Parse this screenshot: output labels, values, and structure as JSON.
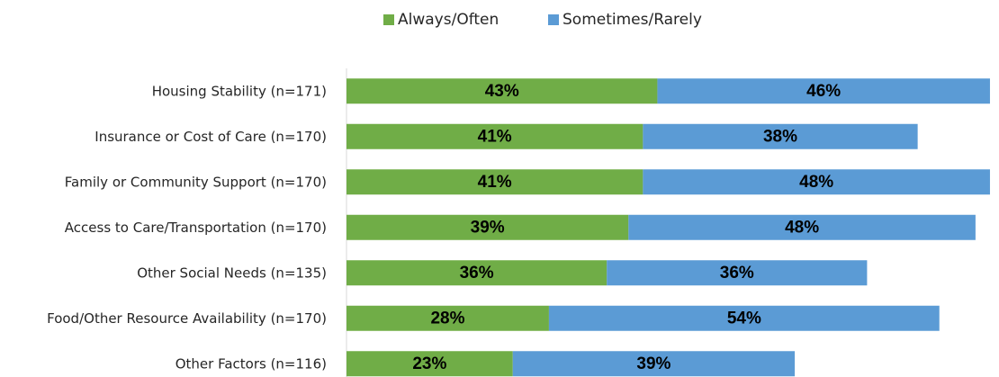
{
  "chart_data": {
    "type": "bar",
    "orientation": "horizontal",
    "stacked": true,
    "categories": [
      "Housing Stability (n=171)",
      "Insurance or Cost of Care (n=170)",
      "Family or Community Support (n=170)",
      "Access to Care/Transportation (n=170)",
      "Other Social Needs (n=135)",
      "Food/Other Resource Availability (n=170)",
      "Other Factors (n=116)"
    ],
    "series": [
      {
        "name": "Always/Often",
        "color": "#70ad47",
        "values": [
          43,
          41,
          41,
          39,
          36,
          28,
          23
        ]
      },
      {
        "name": "Sometimes/Rarely",
        "color": "#5b9bd5",
        "values": [
          46,
          38,
          48,
          48,
          36,
          54,
          39
        ]
      }
    ],
    "value_suffix": "%",
    "xlim": [
      0,
      90
    ],
    "grid": false,
    "legend_position": "top"
  }
}
